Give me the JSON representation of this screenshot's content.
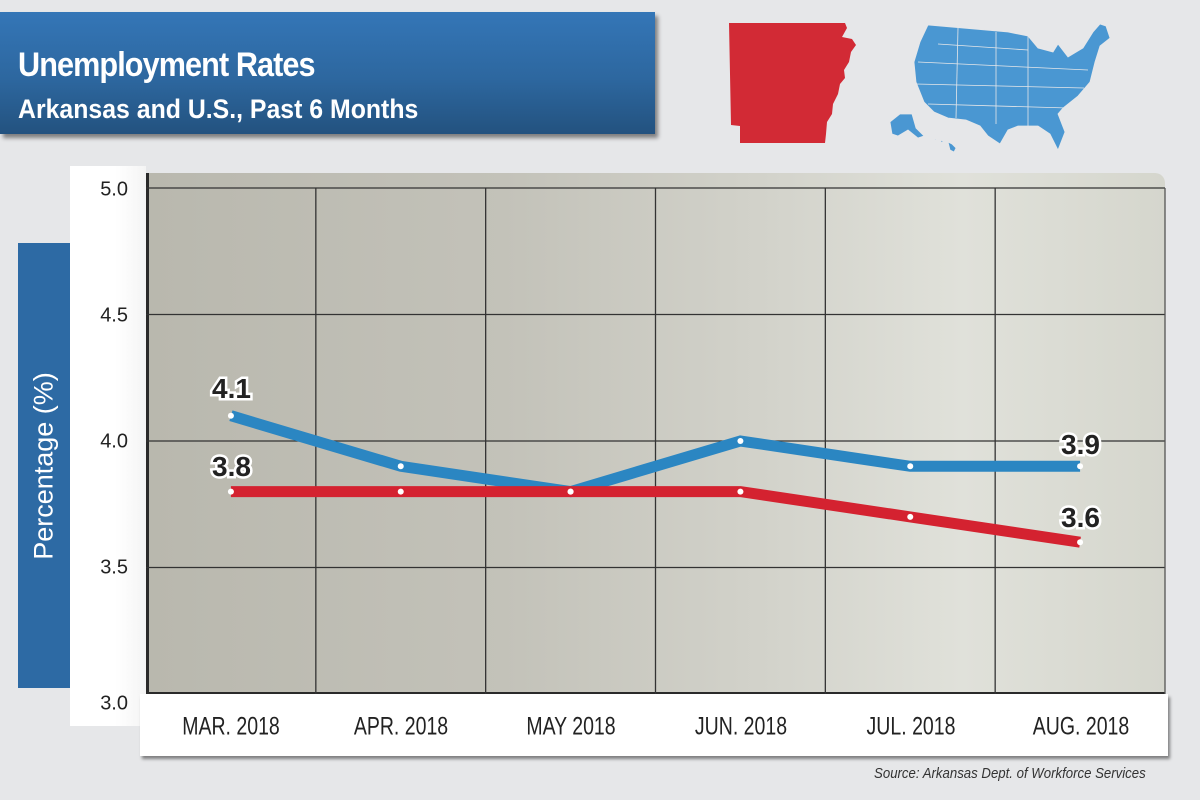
{
  "header": {
    "title": "Unemployment Rates",
    "subtitle": "Arkansas and U.S., Past 6 Months"
  },
  "icons": {
    "arkansas_map": "arkansas-state-silhouette",
    "us_map": "us-map-silhouette"
  },
  "colors": {
    "arkansas": "#d42230",
    "us": "#2b86c2",
    "banner": "#2d679f"
  },
  "axis": {
    "ylabel": "Percentage (%)",
    "yticks": [
      "5.0",
      "4.5",
      "4.0",
      "3.5",
      "3.0"
    ],
    "xticks": [
      "MAR. 2018",
      "APR. 2018",
      "MAY 2018",
      "JUN. 2018",
      "JUL. 2018",
      "AUG. 2018"
    ]
  },
  "labels": {
    "us_start": "4.1",
    "ar_start": "3.8",
    "us_end": "3.9",
    "ar_end": "3.6"
  },
  "source": "Source: Arkansas Dept. of Workforce Services",
  "chart_data": {
    "type": "line",
    "title": "Unemployment Rates",
    "subtitle": "Arkansas and U.S., Past 6 Months",
    "xlabel": "",
    "ylabel": "Percentage (%)",
    "categories": [
      "MAR. 2018",
      "APR. 2018",
      "MAY 2018",
      "JUN. 2018",
      "JUL. 2018",
      "AUG. 2018"
    ],
    "series": [
      {
        "name": "U.S.",
        "color": "#2b86c2",
        "values": [
          4.1,
          3.9,
          3.8,
          4.0,
          3.9,
          3.9
        ]
      },
      {
        "name": "Arkansas",
        "color": "#d42230",
        "values": [
          3.8,
          3.8,
          3.8,
          3.8,
          3.7,
          3.6
        ]
      }
    ],
    "ylim": [
      3.0,
      5.0
    ],
    "yticks": [
      3.0,
      3.5,
      4.0,
      4.5,
      5.0
    ],
    "grid": true,
    "legend": "map icons top-right (red Arkansas, blue U.S.)",
    "annotations": [
      "4.1",
      "3.8",
      "3.9",
      "3.6"
    ],
    "source": "Source: Arkansas Dept. of Workforce Services"
  }
}
